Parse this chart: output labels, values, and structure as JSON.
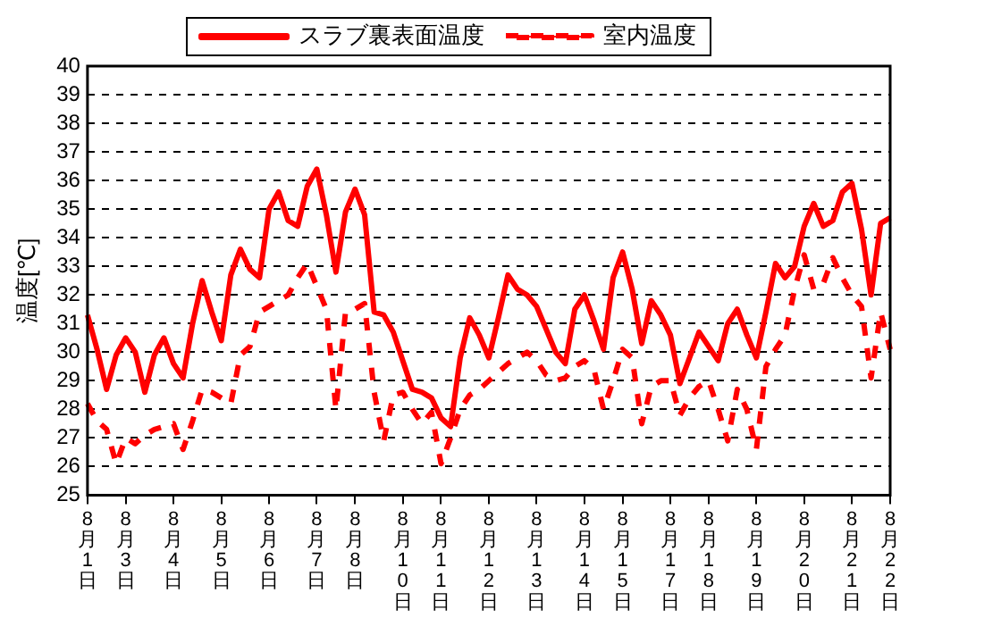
{
  "chart_data": {
    "type": "line",
    "ylabel": "温度[℃]",
    "legend": "top",
    "grid": "y",
    "marker": "none",
    "ylim": [
      25,
      40
    ],
    "yticks": [
      25,
      26,
      27,
      28,
      29,
      30,
      31,
      32,
      33,
      34,
      35,
      36,
      37,
      38,
      39,
      40
    ],
    "categories": [
      "8月1日",
      null,
      null,
      null,
      "8月3日",
      null,
      null,
      null,
      null,
      "8月4日",
      null,
      null,
      null,
      null,
      "8月5日",
      null,
      null,
      null,
      null,
      "8月6日",
      null,
      null,
      null,
      null,
      "8月7日",
      null,
      null,
      null,
      "8月8日",
      null,
      null,
      null,
      null,
      "8月10日",
      null,
      null,
      null,
      "8月11日",
      null,
      null,
      null,
      null,
      "8月12日",
      null,
      null,
      null,
      null,
      "8月13日",
      null,
      null,
      null,
      null,
      "8月14日",
      null,
      null,
      null,
      "8月15日",
      null,
      null,
      null,
      null,
      "8月17日",
      null,
      null,
      null,
      "8月18日",
      null,
      null,
      null,
      null,
      "8月19日",
      null,
      null,
      null,
      null,
      "8月20日",
      null,
      null,
      null,
      null,
      "8月21日",
      null,
      null,
      null,
      "8月22日"
    ],
    "series": [
      {
        "name": "スラブ裏表面温度",
        "color": "#ff0000",
        "line_style": "solid",
        "values": [
          31.3,
          30.1,
          28.7,
          29.9,
          30.5,
          30.0,
          28.6,
          29.9,
          30.5,
          29.6,
          29.1,
          31.0,
          32.5,
          31.4,
          30.4,
          32.7,
          33.6,
          32.9,
          32.6,
          35.0,
          35.6,
          34.6,
          34.4,
          35.8,
          36.4,
          34.8,
          32.8,
          34.9,
          35.7,
          34.8,
          31.4,
          31.3,
          30.7,
          29.7,
          28.7,
          28.6,
          28.4,
          27.7,
          27.4,
          29.8,
          31.2,
          30.6,
          29.8,
          31.2,
          32.7,
          32.2,
          32.0,
          31.6,
          30.8,
          30.0,
          29.6,
          31.5,
          32.0,
          31.1,
          30.1,
          32.6,
          33.5,
          32.2,
          30.3,
          31.8,
          31.3,
          30.6,
          28.9,
          29.8,
          30.7,
          30.2,
          29.7,
          31.0,
          31.5,
          30.6,
          29.8,
          31.4,
          33.1,
          32.6,
          33.0,
          34.4,
          35.2,
          34.4,
          34.6,
          35.6,
          35.9,
          34.3,
          32.0,
          34.5,
          34.7
        ]
      },
      {
        "name": "室内温度",
        "color": "#ff0000",
        "line_style": "dashed",
        "values": [
          28.2,
          27.6,
          27.3,
          26.1,
          27.0,
          26.8,
          27.1,
          27.3,
          27.4,
          27.5,
          26.6,
          27.6,
          28.7,
          28.6,
          28.4,
          28.2,
          29.9,
          30.2,
          31.4,
          31.6,
          31.8,
          32.0,
          32.6,
          33.1,
          32.3,
          31.5,
          28.0,
          31.4,
          31.5,
          31.7,
          28.6,
          26.9,
          28.5,
          28.6,
          28.0,
          27.5,
          27.9,
          26.1,
          27.0,
          28.0,
          28.5,
          28.7,
          29.0,
          29.3,
          29.6,
          29.8,
          30.0,
          29.7,
          29.2,
          29.0,
          29.1,
          29.5,
          29.7,
          29.4,
          28.0,
          29.0,
          30.1,
          29.8,
          27.5,
          28.8,
          29.0,
          29.0,
          27.8,
          28.4,
          28.8,
          29.0,
          28.0,
          26.9,
          28.7,
          28.0,
          26.6,
          29.5,
          30.1,
          30.6,
          32.2,
          33.4,
          32.2,
          32.4,
          33.3,
          32.6,
          32.0,
          31.6,
          29.1,
          31.4,
          30.1
        ]
      }
    ]
  }
}
